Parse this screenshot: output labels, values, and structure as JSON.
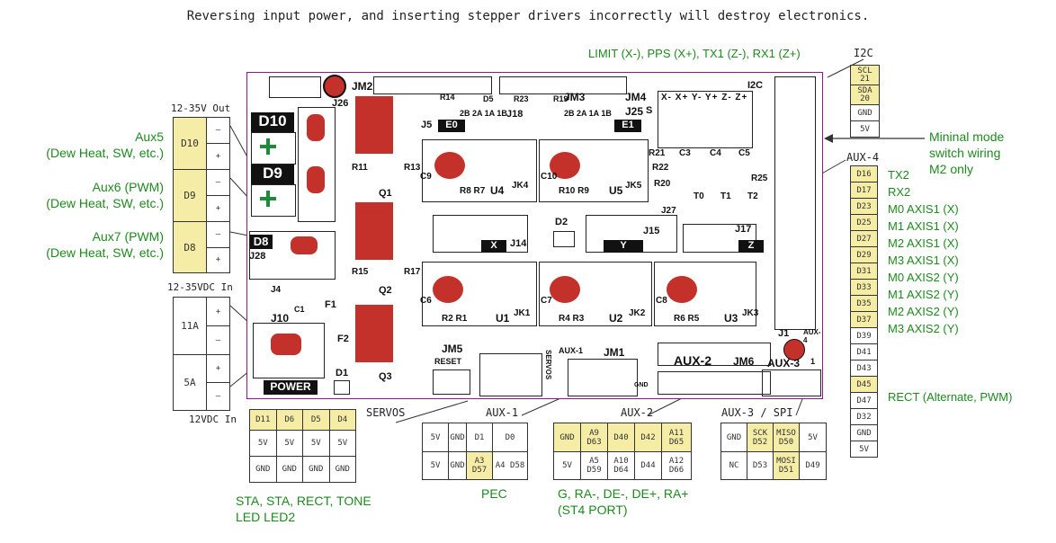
{
  "warning": "Reversing input power, and inserting stepper drivers incorrectly will destroy electronics.",
  "top_label": "LIMIT (X-), PPS (X+), TX1 (Z-), RX1 (Z+)",
  "i2c_title": "I2C",
  "i2c_pins": [
    [
      "SCL",
      "21"
    ],
    [
      "SDA",
      "20"
    ],
    [
      "GND"
    ],
    [
      "5V"
    ]
  ],
  "out_header": "12-35V Out",
  "out_rows": [
    {
      "name": "D10",
      "signs": [
        "–",
        "+"
      ],
      "label": [
        "Aux5",
        "(Dew Heat, SW, etc.)"
      ]
    },
    {
      "name": "D9",
      "signs": [
        "–",
        "+"
      ],
      "label": [
        "Aux6 (PWM)",
        "(Dew Heat, SW, etc.)"
      ]
    },
    {
      "name": "D8",
      "signs": [
        "–",
        "+"
      ],
      "label": [
        "Aux7 (PWM)",
        "(Dew Heat, SW, etc.)"
      ]
    }
  ],
  "in_header": "12-35VDC In",
  "in_rows": [
    {
      "name": "11A",
      "signs": [
        "+",
        "–"
      ]
    },
    {
      "name": "5A",
      "signs": [
        "+",
        "–"
      ]
    }
  ],
  "in_footer": "12VDC In",
  "minimal_note": [
    "Mininal mode",
    "switch wiring",
    "M2 only"
  ],
  "aux4_title": "AUX-4",
  "aux4_pins": [
    "D16",
    "D17",
    "D23",
    "D25",
    "D27",
    "D29",
    "D31",
    "D33",
    "D35",
    "D37",
    "D39",
    "D41",
    "D43",
    "D45",
    "D47",
    "D32",
    "GND",
    "5V"
  ],
  "aux4_labels": [
    "TX2",
    "RX2",
    "M0 AXIS1 (X)",
    "M1 AXIS1 (X)",
    "M2 AXIS1 (X)",
    "M3 AXIS1 (X)",
    "M0 AXIS2 (Y)",
    "M1 AXIS2 (Y)",
    "M2 AXIS2 (Y)",
    "M3 AXIS2 (Y)",
    "RECT (Alternate, PWM)"
  ],
  "servos_title": "SERVOS",
  "servos_rows": [
    [
      "D11",
      "D6",
      "D5",
      "D4"
    ],
    [
      "5V",
      "5V",
      "5V",
      "5V"
    ],
    [
      "GND",
      "GND",
      "GND",
      "GND"
    ]
  ],
  "servos_caption": [
    "STA, STA, RECT, TONE",
    "LED LED2"
  ],
  "aux1_title": "AUX-1",
  "aux1_rows": [
    [
      "5V",
      "GND",
      "D1",
      "D0"
    ],
    [
      "5V",
      "GND",
      "A3 D57",
      "A4 D58"
    ]
  ],
  "aux1_caption": "PEC",
  "aux2_title": "AUX-2",
  "aux2_rows": [
    [
      "GND",
      "A9 D63",
      "D40",
      "D42",
      "A11 D65"
    ],
    [
      "5V",
      "A5 D59",
      "A10 D64",
      "D44",
      "A12 D66"
    ]
  ],
  "aux2_caption": [
    "G, RA-, DE-, DE+, RA+",
    "(ST4 PORT)"
  ],
  "aux3_title": "AUX-3 / SPI",
  "aux3_rows": [
    [
      "GND",
      "SCK D52",
      "MISO D50",
      "5V"
    ],
    [
      "NC",
      "D53",
      "MOSI D51",
      "D49"
    ]
  ],
  "board": {
    "texts": {
      "jm2": "JM2",
      "j26": "J26",
      "jm3": "JM3",
      "jm4": "JM4",
      "j25": "J25",
      "j18": "J18",
      "j5": "J5",
      "e0": "E0",
      "e1": "E1",
      "d10": "D10",
      "d9": "D9",
      "d8": "D8",
      "j28": "J28",
      "r11": "R11",
      "r13": "R13",
      "q1": "Q1",
      "r15": "R15",
      "r17": "R17",
      "q2": "Q2",
      "q3": "Q3",
      "d1": "D1",
      "f1": "F1",
      "f2": "F2",
      "j10": "J10",
      "j4": "J4",
      "c1": "C1",
      "power": "POWER",
      "u4": "U4",
      "jk4": "JK4",
      "u5": "U5",
      "jk5": "JK5",
      "c9": "C9",
      "r8r7": "R8 R7",
      "c10": "C10",
      "r10r9": "R10 R9",
      "j14": "J14",
      "x": "X",
      "d2": "D2",
      "j15": "J15",
      "y": "Y",
      "j17": "J17",
      "z": "Z",
      "j27": "J27",
      "r21": "R21",
      "r22": "R22",
      "r20": "R20",
      "c3": "C3",
      "c4": "C4",
      "c5": "C5",
      "r25": "R25",
      "t0": "T0",
      "t1": "T1",
      "t2": "T2",
      "u1": "U1",
      "jk1": "JK1",
      "u2": "U2",
      "jk2": "JK2",
      "u3": "U3",
      "jk3": "JK3",
      "c6": "C6",
      "c7": "C7",
      "c8": "C8",
      "r2r1": "R2 R1",
      "r4r3": "R4 R3",
      "r6r5": "R6 R5",
      "jm5": "JM5",
      "reset": "RESET",
      "jm1": "JM1",
      "aux1": "AUX-1",
      "aux2": "AUX-2",
      "jm6": "JM6",
      "aux3": "AUX-3",
      "i2c": "I2C",
      "j1": "J1",
      "aux4": "AUX-4",
      "s": "S",
      "r14": "R14",
      "d5": "D5",
      "r23": "R23",
      "r19": "R19",
      "limits": "X- X+ Y- Y+ Z- Z+",
      "two": "2B 2A 1A 1B",
      "one": "1",
      "servos": "SERVOS",
      "gnd": "GND"
    }
  },
  "colors": {
    "pad": "#c4302a",
    "border": "#8a1a8a",
    "label": "#1e8a1e",
    "pin_highlight": "#f5eda6",
    "ground": "#1e8a3a"
  }
}
